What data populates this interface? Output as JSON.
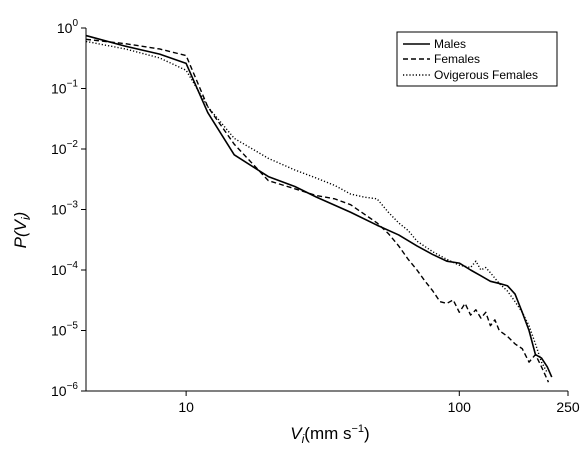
{
  "chart_data": {
    "type": "line",
    "x_scale": "log",
    "y_scale": "log",
    "xlim": [
      4.3,
      250
    ],
    "ylim": [
      1e-06,
      1
    ],
    "x_ticks": [
      {
        "value": 10,
        "label": "10"
      },
      {
        "value": 100,
        "label": "100"
      },
      {
        "value": 250,
        "label": "250"
      }
    ],
    "y_ticks": [
      {
        "value": 1,
        "base": "10",
        "exp": "0"
      },
      {
        "value": 0.1,
        "base": "10",
        "exp": "−1"
      },
      {
        "value": 0.01,
        "base": "10",
        "exp": "−2"
      },
      {
        "value": 0.001,
        "base": "10",
        "exp": "−3"
      },
      {
        "value": 0.0001,
        "base": "10",
        "exp": "−4"
      },
      {
        "value": 1e-05,
        "base": "10",
        "exp": "−5"
      },
      {
        "value": 1e-06,
        "base": "10",
        "exp": "−6"
      }
    ],
    "xlabel": {
      "main": "V",
      "sub": "i",
      "units": "(mm s",
      "units_exp": "−1",
      "units_close": ")"
    },
    "ylabel": {
      "main": "P(V",
      "sub": "i",
      "close": ")"
    },
    "legend_position": "top-right",
    "grid": false,
    "series": [
      {
        "name": "Males",
        "dash": "solid",
        "points": [
          [
            4.3,
            0.75
          ],
          [
            6,
            0.5
          ],
          [
            8,
            0.37
          ],
          [
            10,
            0.26
          ],
          [
            12,
            0.04
          ],
          [
            15,
            0.008
          ],
          [
            20,
            0.0035
          ],
          [
            25,
            0.0024
          ],
          [
            30,
            0.0016
          ],
          [
            40,
            0.0009
          ],
          [
            50,
            0.00055
          ],
          [
            60,
            0.00038
          ],
          [
            70,
            0.00025
          ],
          [
            80,
            0.00018
          ],
          [
            90,
            0.00014
          ],
          [
            100,
            0.00013
          ],
          [
            110,
            0.0001
          ],
          [
            120,
            8e-05
          ],
          [
            130,
            6.5e-05
          ],
          [
            140,
            6e-05
          ],
          [
            150,
            5.5e-05
          ],
          [
            160,
            4e-05
          ],
          [
            170,
            2e-05
          ],
          [
            180,
            1e-05
          ],
          [
            190,
            4e-06
          ],
          [
            200,
            3.5e-06
          ],
          [
            210,
            2.5e-06
          ],
          [
            218,
            1.7e-06
          ]
        ]
      },
      {
        "name": "Females",
        "dash": "dashed",
        "points": [
          [
            4.3,
            0.65
          ],
          [
            6,
            0.55
          ],
          [
            8,
            0.45
          ],
          [
            10,
            0.35
          ],
          [
            12,
            0.05
          ],
          [
            15,
            0.012
          ],
          [
            20,
            0.003
          ],
          [
            25,
            0.0022
          ],
          [
            30,
            0.0017
          ],
          [
            35,
            0.0015
          ],
          [
            40,
            0.0012
          ],
          [
            50,
            0.0006
          ],
          [
            55,
            0.0004
          ],
          [
            60,
            0.00025
          ],
          [
            65,
            0.00015
          ],
          [
            70,
            0.0001
          ],
          [
            75,
            6.5e-05
          ],
          [
            80,
            4.5e-05
          ],
          [
            85,
            3e-05
          ],
          [
            90,
            2.8e-05
          ],
          [
            95,
            3.2e-05
          ],
          [
            100,
            2e-05
          ],
          [
            105,
            2.8e-05
          ],
          [
            110,
            1.8e-05
          ],
          [
            115,
            2.2e-05
          ],
          [
            120,
            1.6e-05
          ],
          [
            125,
            2e-05
          ],
          [
            130,
            1.2e-05
          ],
          [
            135,
            1.5e-05
          ],
          [
            140,
            1e-05
          ],
          [
            150,
            8e-06
          ],
          [
            160,
            6e-06
          ],
          [
            170,
            5e-06
          ],
          [
            180,
            3e-06
          ],
          [
            190,
            4e-06
          ],
          [
            200,
            2.5e-06
          ],
          [
            212,
            1.4e-06
          ]
        ]
      },
      {
        "name": "Ovigerous Females",
        "dash": "dotted",
        "points": [
          [
            4.3,
            0.6
          ],
          [
            6,
            0.45
          ],
          [
            8,
            0.32
          ],
          [
            10,
            0.2
          ],
          [
            12,
            0.05
          ],
          [
            15,
            0.015
          ],
          [
            20,
            0.007
          ],
          [
            25,
            0.0045
          ],
          [
            30,
            0.0033
          ],
          [
            35,
            0.0025
          ],
          [
            40,
            0.0018
          ],
          [
            45,
            0.0016
          ],
          [
            50,
            0.0015
          ],
          [
            55,
            0.0009
          ],
          [
            60,
            0.0006
          ],
          [
            65,
            0.00045
          ],
          [
            70,
            0.0003
          ],
          [
            80,
            0.0002
          ],
          [
            90,
            0.00015
          ],
          [
            100,
            0.00012
          ],
          [
            110,
            0.00011
          ],
          [
            115,
            0.00014
          ],
          [
            120,
            0.0001
          ],
          [
            125,
            0.00011
          ],
          [
            130,
            9e-05
          ],
          [
            140,
            6e-05
          ],
          [
            150,
            4.5e-05
          ],
          [
            160,
            3e-05
          ],
          [
            170,
            2e-05
          ],
          [
            180,
            1.2e-05
          ],
          [
            190,
            6e-06
          ],
          [
            200,
            3e-06
          ],
          [
            210,
            2e-06
          ]
        ]
      }
    ]
  }
}
